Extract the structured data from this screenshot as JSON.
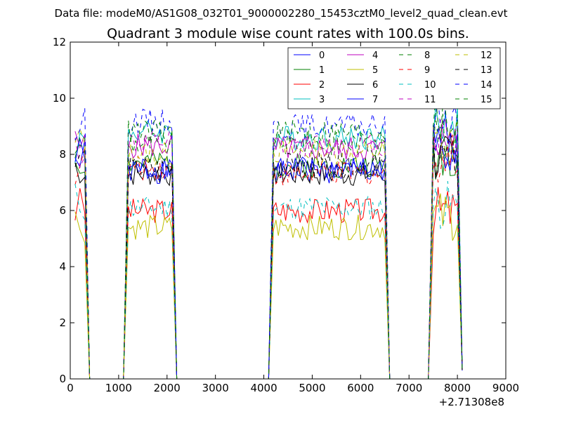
{
  "figure": {
    "suptitle": "Data file: modeM0/AS1G08_032T01_9000002280_15453cztM0_level2_quad_clean.evt",
    "title": "Quadrant 3 module wise count rates with 100.0s bins.",
    "x_offset_label": "+2.71308e8"
  },
  "chart_data": {
    "type": "line",
    "title": "Quadrant 3 module wise count rates with 100.0s bins.",
    "xlabel": "",
    "ylabel": "",
    "xlim": [
      0,
      9000
    ],
    "ylim": [
      0,
      12
    ],
    "x_offset": 271308000,
    "xticks": [
      0,
      1000,
      2000,
      3000,
      4000,
      5000,
      6000,
      7000,
      8000,
      9000
    ],
    "yticks": [
      0,
      2,
      4,
      6,
      8,
      10,
      12
    ],
    "xtick_labels": [
      "0",
      "1000",
      "2000",
      "3000",
      "4000",
      "5000",
      "6000",
      "7000",
      "8000",
      "9000"
    ],
    "ytick_labels": [
      "0",
      "2",
      "4",
      "6",
      "8",
      "10",
      "12"
    ],
    "grid": false,
    "legend": {
      "placement": "top-right",
      "columns": 4
    },
    "segments": [
      {
        "x_start": 100,
        "x_end": 300,
        "step": 100
      },
      {
        "x_start": 1200,
        "x_end": 2100,
        "step": 50
      },
      {
        "x_start": 4200,
        "x_end": 6500,
        "step": 50
      },
      {
        "x_start": 7500,
        "x_end": 8000,
        "step": 50
      }
    ],
    "gaps": [
      {
        "x": [
          400,
          500,
          1100
        ],
        "y": 0
      },
      {
        "x": [
          2200,
          2300,
          4100
        ],
        "y": 0
      },
      {
        "x": [
          6600,
          6700,
          7400
        ],
        "y": 0
      }
    ],
    "series": [
      {
        "name": "0",
        "color": "#0000ff",
        "dash": "solid",
        "levels": [
          7.8,
          7.4,
          7.4,
          8.0
        ],
        "seed": 1
      },
      {
        "name": "1",
        "color": "#008000",
        "dash": "solid",
        "levels": [
          7.9,
          7.7,
          7.6,
          8.0
        ],
        "seed": 2
      },
      {
        "name": "2",
        "color": "#ff0000",
        "dash": "solid",
        "levels": [
          6.1,
          6.0,
          6.0,
          6.0
        ],
        "seed": 3
      },
      {
        "name": "3",
        "color": "#00bfbf",
        "dash": "solid",
        "levels": [
          8.4,
          8.8,
          8.6,
          9.1
        ],
        "seed": 4
      },
      {
        "name": "4",
        "color": "#bf00bf",
        "dash": "solid",
        "levels": [
          8.2,
          8.3,
          8.2,
          8.7
        ],
        "seed": 5
      },
      {
        "name": "5",
        "color": "#bfbf00",
        "dash": "solid",
        "levels": [
          5.6,
          5.4,
          5.4,
          5.8
        ],
        "seed": 6
      },
      {
        "name": "6",
        "color": "#000000",
        "dash": "solid",
        "levels": [
          7.6,
          7.3,
          7.3,
          7.8
        ],
        "seed": 7
      },
      {
        "name": "7",
        "color": "#0000ff",
        "dash": "solid",
        "levels": [
          7.9,
          7.5,
          7.5,
          8.3
        ],
        "seed": 8
      },
      {
        "name": "8",
        "color": "#008000",
        "dash": "dashed",
        "levels": [
          8.3,
          8.4,
          8.4,
          8.6
        ],
        "seed": 9
      },
      {
        "name": "9",
        "color": "#ff0000",
        "dash": "dashed",
        "levels": [
          7.6,
          7.5,
          7.3,
          7.9
        ],
        "seed": 10
      },
      {
        "name": "10",
        "color": "#00bfbf",
        "dash": "dashed",
        "levels": [
          6.3,
          6.1,
          6.1,
          6.2
        ],
        "seed": 11
      },
      {
        "name": "11",
        "color": "#bf00bf",
        "dash": "dashed",
        "levels": [
          8.2,
          8.4,
          8.3,
          8.6
        ],
        "seed": 12
      },
      {
        "name": "12",
        "color": "#bfbf00",
        "dash": "dashed",
        "levels": [
          8.3,
          8.0,
          8.1,
          8.4
        ],
        "seed": 13
      },
      {
        "name": "13",
        "color": "#000000",
        "dash": "dashed",
        "levels": [
          7.7,
          7.5,
          7.6,
          7.9
        ],
        "seed": 14
      },
      {
        "name": "14",
        "color": "#0000ff",
        "dash": "dashed",
        "levels": [
          8.9,
          9.2,
          9.0,
          9.3
        ],
        "seed": 15
      },
      {
        "name": "15",
        "color": "#008000",
        "dash": "dashed",
        "levels": [
          8.7,
          8.8,
          8.8,
          9.2
        ],
        "seed": 16
      }
    ]
  }
}
